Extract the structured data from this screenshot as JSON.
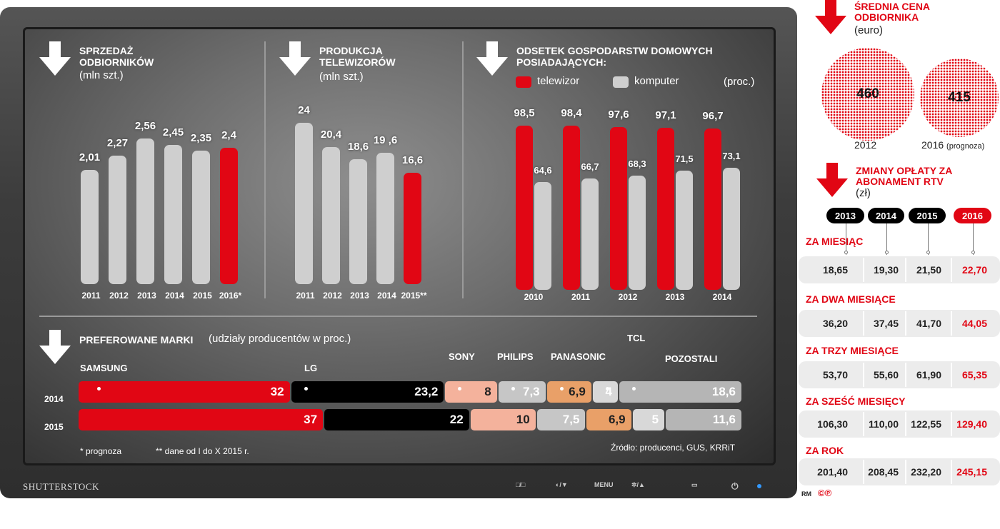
{
  "tv": {
    "brand": "SHUTTERSTOCK",
    "controls": [
      "□/□",
      "◐/▼",
      "MENU",
      "✲/▲",
      "▭",
      "⏻"
    ]
  },
  "sales": {
    "title": "SPRZEDAŻ ODBIORNIKÓW",
    "unit": "(mln szt.)",
    "chart_data": {
      "type": "bar",
      "categories": [
        "2011",
        "2012",
        "2013",
        "2014",
        "2015",
        "2016*"
      ],
      "values": [
        2.01,
        2.27,
        2.56,
        2.45,
        2.35,
        2.4
      ],
      "labels": [
        "2,01",
        "2,27",
        "2,56",
        "2,45",
        "2,35",
        "2,4"
      ],
      "highlight_color": "#e10614",
      "base_color": "#cfcfcf"
    }
  },
  "production": {
    "title": "PRODUKCJA TELEWIZORÓW",
    "unit": "(mln szt.)",
    "chart_data": {
      "type": "bar",
      "categories": [
        "2011",
        "2012",
        "2013",
        "2014",
        "2015**"
      ],
      "values": [
        24,
        20.4,
        18.6,
        19.6,
        16.6
      ],
      "labels": [
        "24",
        "20,4",
        "18,6",
        "19 ,6",
        "16,6"
      ]
    }
  },
  "households": {
    "title": "ODSETEK GOSPODARSTW DOMOWYCH POSIADAJĄCYCH:",
    "unit": "(proc.)",
    "legend": [
      "telewizor",
      "komputer"
    ],
    "chart_data": {
      "type": "bar",
      "categories": [
        "2010",
        "2011",
        "2012",
        "2013",
        "2014"
      ],
      "series": [
        {
          "name": "telewizor",
          "values": [
            98.5,
            98.4,
            97.6,
            97.1,
            96.7
          ],
          "labels": [
            "98,5",
            "98,4",
            "97,6",
            "97,1",
            "96,7"
          ]
        },
        {
          "name": "komputer",
          "values": [
            64.6,
            66.7,
            68.3,
            71.5,
            73.1
          ],
          "labels": [
            "64,6",
            "66,7",
            "68,3",
            "71,5",
            "73,1"
          ]
        }
      ]
    }
  },
  "brands": {
    "title": "PREFEROWANE MARKI",
    "subtitle": "(udziały producentów w proc.)",
    "names": [
      "SAMSUNG",
      "LG",
      "SONY",
      "PHILIPS",
      "PANASONIC",
      "TCL",
      "POZOSTALI"
    ],
    "colors": [
      "#e10614",
      "#000000",
      "#f4b29c",
      "#c6c6c6",
      "#e9a068",
      "#d8d8d8",
      "#b5b5b5"
    ],
    "chart_data": {
      "type": "bar",
      "orientation": "horizontal-stacked",
      "categories": [
        "2014",
        "2015"
      ],
      "series": [
        {
          "name": "SAMSUNG",
          "values": [
            32,
            37
          ],
          "labels": [
            "32",
            "37"
          ]
        },
        {
          "name": "LG",
          "values": [
            23.2,
            22
          ],
          "labels": [
            "23,2",
            "22"
          ]
        },
        {
          "name": "SONY",
          "values": [
            8,
            10
          ],
          "labels": [
            "8",
            "10"
          ]
        },
        {
          "name": "PHILIPS",
          "values": [
            7.3,
            7.5
          ],
          "labels": [
            "7,3",
            "7,5"
          ]
        },
        {
          "name": "PANASONIC",
          "values": [
            6.9,
            6.9
          ],
          "labels": [
            "6,9",
            "6,9"
          ]
        },
        {
          "name": "TCL",
          "values": [
            4,
            5
          ],
          "labels": [
            "4",
            "5"
          ]
        },
        {
          "name": "POZOSTALI",
          "values": [
            18.6,
            11.6
          ],
          "labels": [
            "18,6",
            "11,6"
          ]
        }
      ]
    }
  },
  "notes": {
    "forecast": "* prognoza",
    "data_note": "** dane od I do X 2015 r.",
    "source": "Źródło: producenci, GUS, KRRiT"
  },
  "price": {
    "title": "ŚREDNIA CENA ODBIORNIKA",
    "unit": "(euro)",
    "chart_data": {
      "type": "bar",
      "categories": [
        "2012",
        "2016"
      ],
      "values": [
        460,
        415
      ],
      "labels": [
        "460",
        "415"
      ]
    },
    "year1": "2012",
    "year2": "2016",
    "year2_note": "(prognoza)"
  },
  "rtv": {
    "title": "ZMIANY OPŁATY ZA ABONAMENT RTV",
    "unit": "(zł)",
    "years": [
      "2013",
      "2014",
      "2015",
      "2016"
    ],
    "chart_data": {
      "type": "table",
      "columns": [
        "2013",
        "2014",
        "2015",
        "2016"
      ],
      "rows": [
        {
          "label": "ZA MIESIĄC",
          "values": [
            "18,65",
            "19,30",
            "21,50",
            "22,70"
          ]
        },
        {
          "label": "ZA DWA MIESIĄCE",
          "values": [
            "36,20",
            "37,45",
            "41,70",
            "44,05"
          ]
        },
        {
          "label": "ZA TRZY MIESIĄCE",
          "values": [
            "53,70",
            "55,60",
            "61,90",
            "65,35"
          ]
        },
        {
          "label": "ZA SZEŚĆ MIESIĘCY",
          "values": [
            "106,30",
            "110,00",
            "122,55",
            "129,40"
          ]
        },
        {
          "label": "ZA ROK",
          "values": [
            "201,40",
            "208,45",
            "232,20",
            "245,15"
          ]
        }
      ]
    }
  },
  "credit": {
    "rm": "RM",
    "marks": "©℗"
  }
}
